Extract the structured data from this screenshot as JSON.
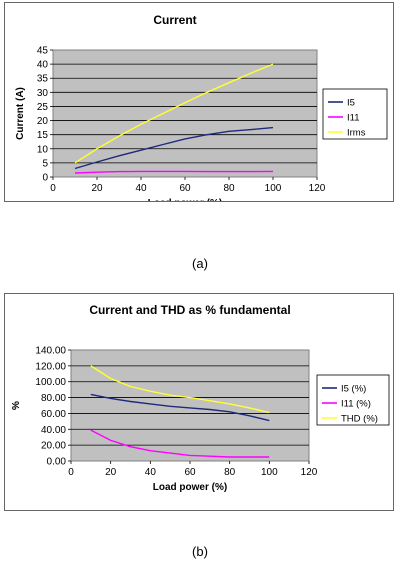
{
  "chart_data": [
    {
      "type": "line",
      "title": "Current",
      "xlabel": "Load power (%)",
      "ylabel": "Current (A)",
      "xlim": [
        0,
        120
      ],
      "ylim": [
        0,
        45
      ],
      "x_ticks": [
        "0",
        "20",
        "40",
        "60",
        "80",
        "100",
        "120"
      ],
      "y_ticks": [
        "0",
        "5",
        "10",
        "15",
        "20",
        "25",
        "30",
        "35",
        "40",
        "45"
      ],
      "grid": true,
      "legend_position": "right",
      "x": [
        10,
        20,
        30,
        40,
        50,
        60,
        70,
        80,
        90,
        100
      ],
      "series": [
        {
          "name": "I5",
          "color": "#1f2a7a",
          "values": [
            3,
            5.3,
            7.5,
            9.5,
            11.5,
            13.5,
            15,
            16.2,
            16.8,
            17.5
          ]
        },
        {
          "name": "I11",
          "color": "#ff00ff",
          "values": [
            1.4,
            1.7,
            1.9,
            2.0,
            2.0,
            2.0,
            1.9,
            1.9,
            1.9,
            2.0
          ]
        },
        {
          "name": "Irms",
          "color": "#ffff33",
          "values": [
            5,
            10,
            14.5,
            18.7,
            22.5,
            26.3,
            30,
            33.4,
            36.8,
            40
          ]
        }
      ]
    },
    {
      "type": "line",
      "title": "Current and THD as % fundamental",
      "xlabel": "Load power (%)",
      "ylabel": "%",
      "xlim": [
        0,
        120
      ],
      "ylim": [
        0,
        140
      ],
      "x_ticks": [
        "0",
        "20",
        "40",
        "60",
        "80",
        "100",
        "120"
      ],
      "y_ticks": [
        "0.00",
        "20.00",
        "40.00",
        "60.00",
        "80.00",
        "100.00",
        "120.00",
        "140.00"
      ],
      "grid": true,
      "legend_position": "right",
      "x": [
        10,
        20,
        30,
        40,
        50,
        60,
        70,
        80,
        90,
        100
      ],
      "series": [
        {
          "name": "I5 (%)",
          "color": "#1f2a7a",
          "values": [
            84,
            79,
            75,
            72,
            69,
            67,
            65,
            62,
            57,
            51
          ]
        },
        {
          "name": "I11 (%)",
          "color": "#ff00ff",
          "values": [
            39,
            26,
            18,
            13,
            10,
            7,
            6,
            5,
            5,
            5
          ]
        },
        {
          "name": "THD (%)",
          "color": "#ffff33",
          "values": [
            120,
            104,
            94,
            88,
            83,
            80,
            76,
            72,
            67,
            61
          ]
        }
      ]
    }
  ],
  "captions": [
    "(a)",
    "(b)"
  ]
}
